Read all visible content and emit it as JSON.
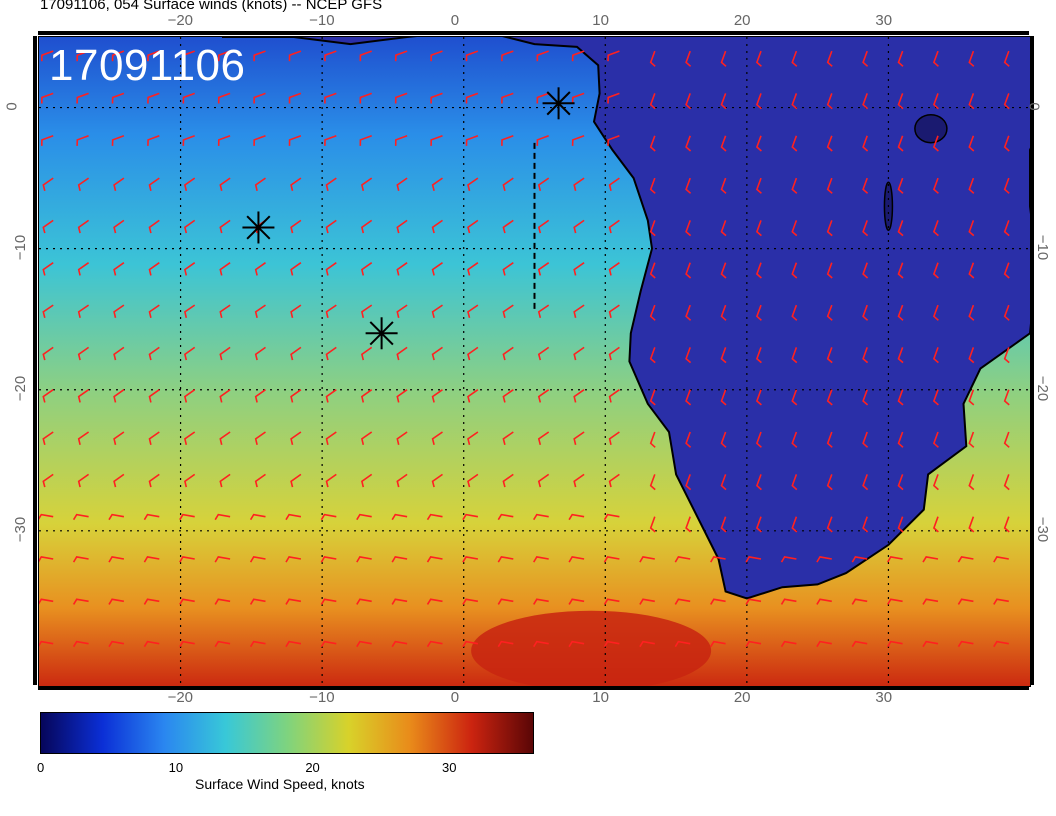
{
  "header": {
    "title": "17091106, 054 Surface winds (knots) -- NCEP GFS"
  },
  "map": {
    "stamp": "17091106",
    "lon_range": [
      -30,
      40
    ],
    "lat_range": [
      -41,
      5
    ],
    "lon_ticks": [
      "−20",
      "−10",
      "0",
      "10",
      "20",
      "30"
    ],
    "lat_ticks": [
      "0",
      "−10",
      "−20",
      "−30"
    ],
    "lon_tick_values": [
      -20,
      -10,
      0,
      10,
      20,
      30
    ],
    "lat_tick_values": [
      0,
      -10,
      -20,
      -30
    ],
    "land_color": "#2a2fa8",
    "ocean_colors": [
      "#1f4fcf",
      "#2a8ee8",
      "#3cc4d6",
      "#8fd080",
      "#d7d23a",
      "#e89020",
      "#cc2a10"
    ],
    "barb_color": "#ff2020",
    "markers": [
      {
        "lon": -14.5,
        "lat": -8.5,
        "symbol": "star"
      },
      {
        "lon": 6.7,
        "lat": 0.3,
        "symbol": "star"
      },
      {
        "lon": -5.8,
        "lat": -16.0,
        "symbol": "star"
      }
    ]
  },
  "colorbar": {
    "label": "Surface Wind Speed, knots",
    "ticks": [
      "0",
      "10",
      "20",
      "30"
    ],
    "tick_values": [
      0,
      10,
      20,
      30
    ],
    "max": 36,
    "stops": [
      "#06065a",
      "#0b2fd6",
      "#2a86f0",
      "#38c8d8",
      "#7ed37f",
      "#d8d22a",
      "#e98b1a",
      "#cc2410",
      "#5a0606"
    ]
  }
}
